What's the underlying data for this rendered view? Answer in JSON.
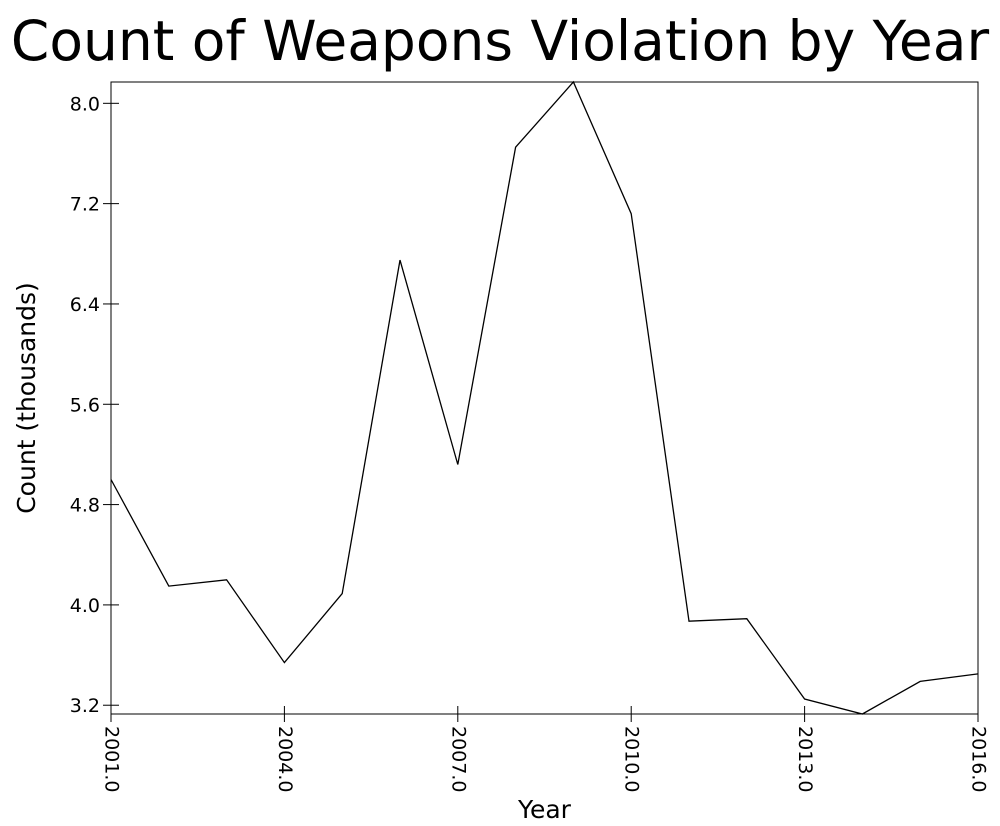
{
  "chart_data": {
    "type": "line",
    "title": "Count of Weapons Violation by Year",
    "xlabel": "Year",
    "ylabel": "Count (thousands)",
    "x": [
      2001,
      2002,
      2003,
      2004,
      2005,
      2006,
      2007,
      2008,
      2009,
      2010,
      2011,
      2012,
      2013,
      2014,
      2015,
      2016
    ],
    "series": [
      {
        "values": [
          5.0,
          4.15,
          4.2,
          3.54,
          4.09,
          6.75,
          5.12,
          7.65,
          8.17,
          7.12,
          3.87,
          3.89,
          3.25,
          3.13,
          3.39,
          3.45
        ]
      }
    ],
    "xlim": [
      2001,
      2016
    ],
    "ylim": [
      3.13,
      8.17
    ],
    "xticks": [
      2001,
      2004,
      2007,
      2010,
      2013,
      2016
    ],
    "xtick_labels": [
      "2001.0",
      "2004.0",
      "2007.0",
      "2010.0",
      "2013.0",
      "2016.0"
    ],
    "yticks": [
      3.2,
      4.0,
      4.8,
      5.6,
      6.4,
      7.2,
      8.0
    ],
    "ytick_labels": [
      "3.2",
      "4.0",
      "4.8",
      "5.6",
      "6.4",
      "7.2",
      "8.0"
    ],
    "line_color": "#000000",
    "grid": false,
    "legend": "none"
  }
}
